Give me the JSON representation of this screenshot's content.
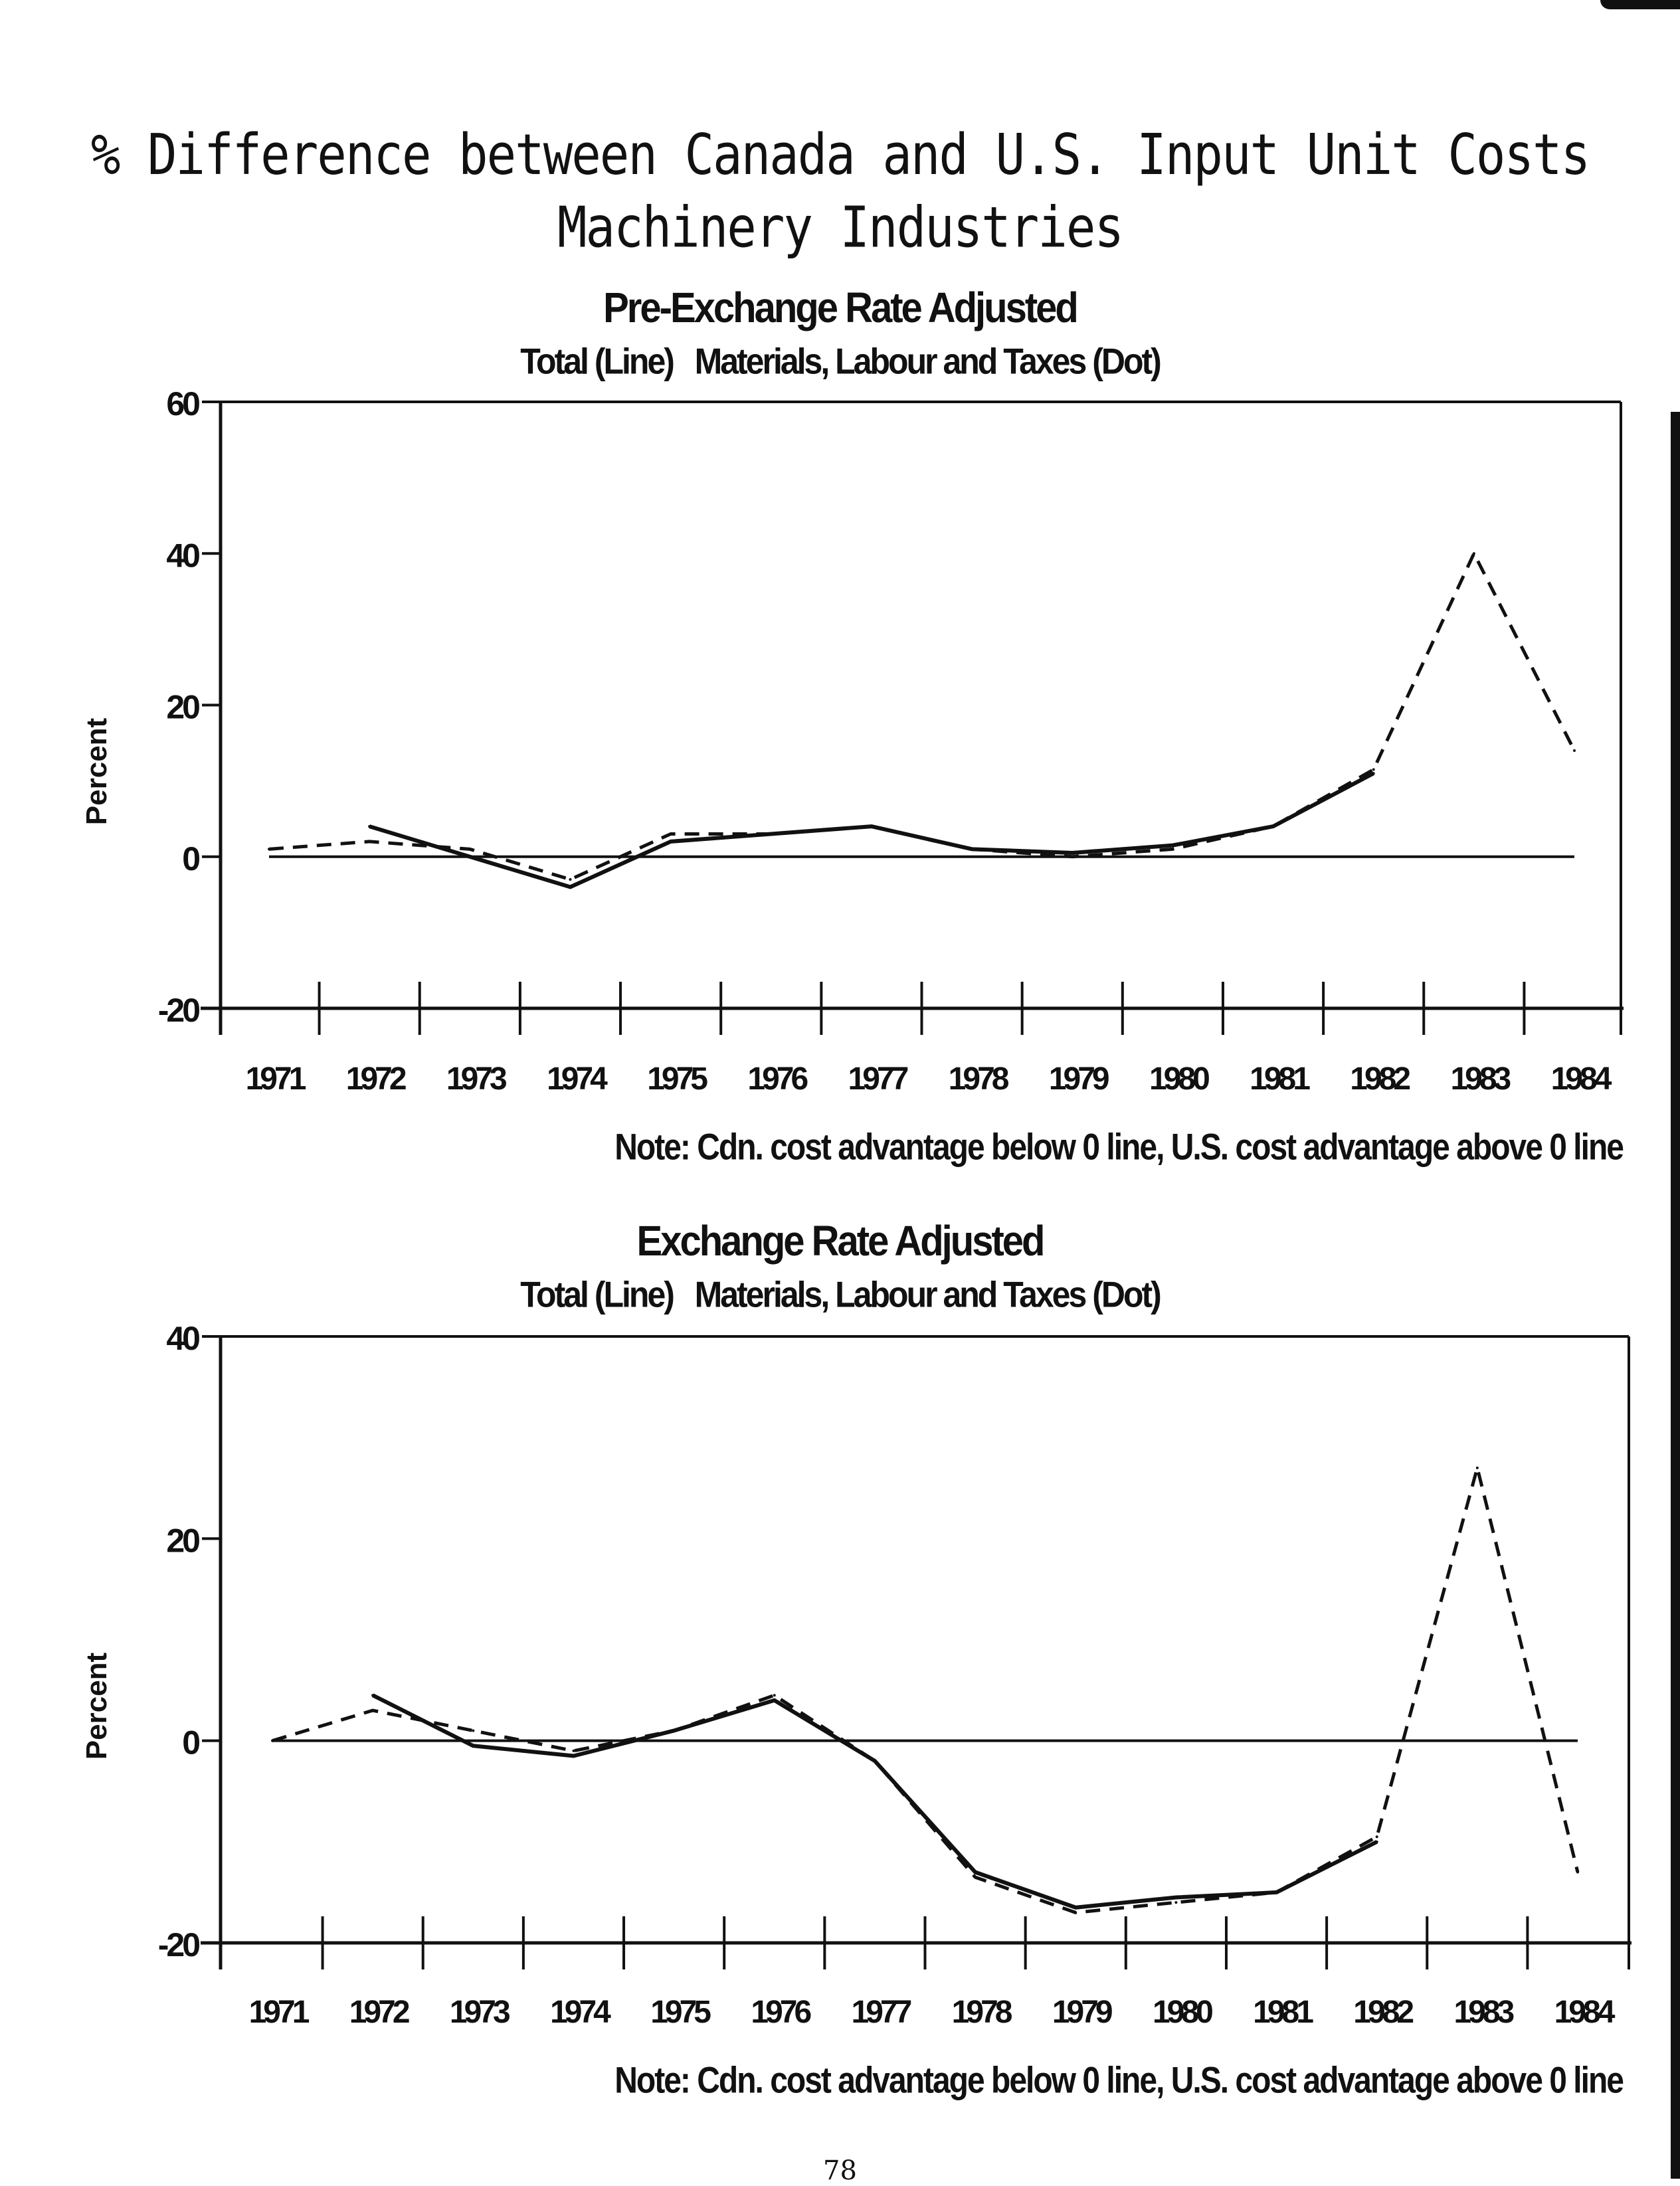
{
  "page": {
    "title_line1": "% Difference between Canada and U.S. Input Unit Costs",
    "title_line2": "Machinery Industries",
    "page_number": "78"
  },
  "chart_data": [
    {
      "type": "line",
      "title": "Pre-Exchange Rate Adjusted",
      "subtitle": "Total (Line)   Materials, Labour and Taxes (Dot)",
      "ylabel": "Percent",
      "xlabel": "",
      "ylim": [
        -20,
        60
      ],
      "yticks": [
        -20,
        0,
        20,
        40,
        60
      ],
      "categories": [
        "1971",
        "1972",
        "1973",
        "1974",
        "1975",
        "1976",
        "1977",
        "1978",
        "1979",
        "1980",
        "1981",
        "1982",
        "1983",
        "1984"
      ],
      "zero_line": true,
      "grid": false,
      "series": [
        {
          "name": "Total",
          "style": "solid",
          "x": [
            "1972",
            "1973",
            "1974",
            "1975",
            "1976",
            "1977",
            "1978",
            "1979",
            "1980",
            "1981",
            "1982"
          ],
          "values": [
            4,
            0,
            -4,
            2,
            3,
            4,
            1,
            0.5,
            1.5,
            4,
            11
          ]
        },
        {
          "name": "Materials, Labour and Taxes",
          "style": "dashed",
          "x": [
            "1971",
            "1972",
            "1973",
            "1974",
            "1975",
            "1976",
            "1977",
            "1978",
            "1979",
            "1980",
            "1981",
            "1982",
            "1983",
            "1984"
          ],
          "values": [
            1,
            2,
            1,
            -3,
            3,
            3,
            4,
            1,
            0,
            1,
            4,
            11.5,
            40,
            14
          ]
        }
      ],
      "note": "Note: Cdn. cost advantage below 0 line, U.S. cost advantage above 0 line"
    },
    {
      "type": "line",
      "title": "Exchange Rate Adjusted",
      "subtitle": "Total (Line)   Materials, Labour and Taxes (Dot)",
      "ylabel": "Percent",
      "xlabel": "",
      "ylim": [
        -20,
        40
      ],
      "yticks": [
        -20,
        0,
        20,
        40
      ],
      "categories": [
        "1971",
        "1972",
        "1973",
        "1974",
        "1975",
        "1976",
        "1977",
        "1978",
        "1979",
        "1980",
        "1981",
        "1982",
        "1983",
        "1984"
      ],
      "zero_line": true,
      "grid": false,
      "series": [
        {
          "name": "Total",
          "style": "solid",
          "x": [
            "1972",
            "1973",
            "1974",
            "1975",
            "1976",
            "1977",
            "1978",
            "1979",
            "1980",
            "1981",
            "1982"
          ],
          "values": [
            4.5,
            -0.5,
            -1.5,
            1,
            4,
            -2,
            -13,
            -16.5,
            -15.5,
            -15,
            -10
          ]
        },
        {
          "name": "Materials, Labour and Taxes",
          "style": "dashed",
          "x": [
            "1971",
            "1972",
            "1973",
            "1974",
            "1975",
            "1976",
            "1977",
            "1978",
            "1979",
            "1980",
            "1981",
            "1982",
            "1983",
            "1984"
          ],
          "values": [
            0,
            3,
            1,
            -1,
            1,
            4.5,
            -2,
            -13.5,
            -17,
            -16,
            -15,
            -9.5,
            27,
            -13
          ]
        }
      ],
      "note": "Note: Cdn. cost advantage below 0 line, U.S. cost advantage above 0 line"
    }
  ],
  "colors": {
    "ink": "#111111",
    "background": "#ffffff"
  }
}
